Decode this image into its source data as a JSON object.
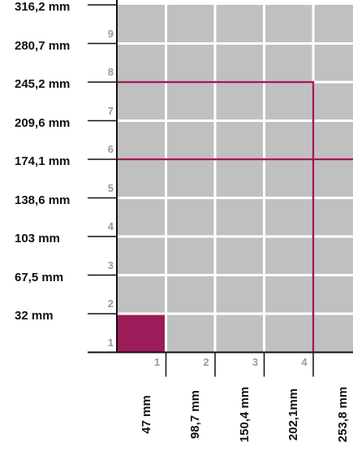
{
  "rows": [
    {
      "num": "1",
      "label": "32 mm"
    },
    {
      "num": "2",
      "label": "67,5 mm"
    },
    {
      "num": "3",
      "label": "103 mm"
    },
    {
      "num": "4",
      "label": "138,6 mm"
    },
    {
      "num": "5",
      "label": "174,1 mm"
    },
    {
      "num": "6",
      "label": "209,6 mm"
    },
    {
      "num": "7",
      "label": "245,2 mm"
    },
    {
      "num": "8",
      "label": "280,7 mm"
    },
    {
      "num": "9",
      "label": "316,2 mm"
    }
  ],
  "columns": [
    {
      "num": "1",
      "label": "47 mm"
    },
    {
      "num": "2",
      "label": "98,7 mm"
    },
    {
      "num": "3",
      "label": "150,4 mm"
    },
    {
      "num": "4",
      "label": "202,1mm"
    },
    {
      "num": "",
      "label": "253,8 mm"
    }
  ],
  "highlight": {
    "rows": 7,
    "cols": 4,
    "middle_row_line_after": 5
  },
  "colors": {
    "cell": "#c0c0c0",
    "grid": "#ffffff",
    "accent": "#9c1c5a",
    "axis": "#111111"
  }
}
